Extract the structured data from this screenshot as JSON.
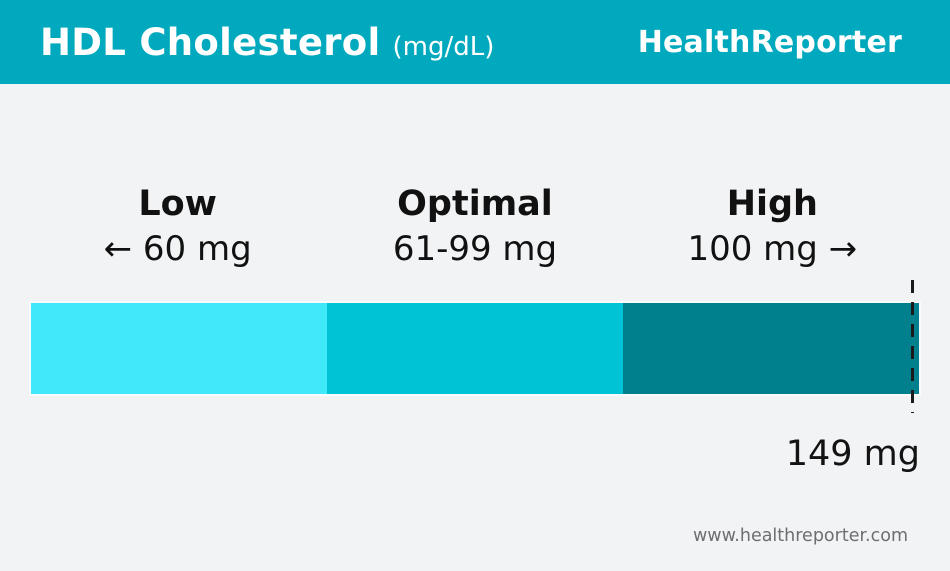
{
  "header": {
    "title": "HDL Cholesterol",
    "unit": "(mg/dL)",
    "brand": "HealthReporter"
  },
  "colors": {
    "header_bg": "#00a9bd",
    "page_bg": "#f2f3f5",
    "segment_low": "#40e9f9",
    "segment_optimal": "#00c4d6",
    "segment_high": "#00808c",
    "marker_line": "#1a1a1a",
    "label_text": "#111111",
    "footer_text": "#6c6e72"
  },
  "chart_data": {
    "type": "bar",
    "orientation": "horizontal",
    "title": "HDL Cholesterol (mg/dL)",
    "unit": "mg/dL",
    "categories": [
      "Low",
      "Optimal",
      "High"
    ],
    "segments": [
      {
        "label": "Low",
        "range_text": "← 60 mg",
        "range": [
          0,
          60
        ],
        "color": "#40e9f9"
      },
      {
        "label": "Optimal",
        "range_text": "61-99 mg",
        "range": [
          61,
          99
        ],
        "color": "#00c4d6"
      },
      {
        "label": "High",
        "range_text": "100 mg →",
        "range": [
          100,
          149
        ],
        "color": "#00808c"
      }
    ],
    "marker": {
      "value": 149,
      "label": "149 mg",
      "position": "right-end"
    },
    "legend": "none",
    "grid": false
  },
  "footer": {
    "website": "www.healthreporter.com"
  }
}
